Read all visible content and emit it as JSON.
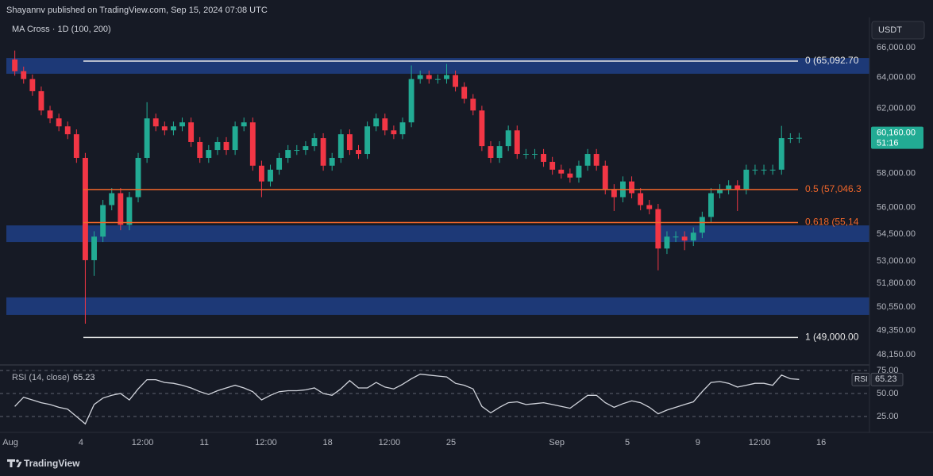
{
  "header": {
    "byline": "Shayannv published on TradingView.com, Sep 15, 2024 07:08 UTC"
  },
  "footer": {
    "brand": "TradingView"
  },
  "chart_data": [
    {
      "type": "candlestick",
      "title": "MA Cross · 1D (100, 200)",
      "currency": "USDT",
      "log_scale": true,
      "grid": false,
      "up_color": "#22ab94",
      "down_color": "#f23645",
      "x": [
        0.25,
        0.75,
        1.25,
        1.75,
        2.25,
        2.75,
        3.25,
        3.75,
        4.25,
        4.75,
        5.25,
        5.75,
        6.25,
        6.75,
        7.25,
        7.75,
        8.25,
        8.75,
        9.25,
        9.75,
        10.25,
        10.75,
        11.25,
        11.75,
        12.25,
        12.75,
        13.25,
        13.75,
        14.25,
        14.75,
        15.25,
        15.75,
        16.25,
        16.75,
        17.25,
        17.75,
        18.25,
        18.75,
        19.25,
        19.75,
        20.25,
        20.75,
        21.25,
        21.75,
        22.25,
        22.75,
        23.25,
        23.75,
        24.25,
        24.75,
        25.25,
        25.75,
        26.25,
        26.75,
        27.25,
        27.75,
        28.25,
        28.75,
        29.25,
        29.75,
        30.25,
        30.75,
        31.25,
        31.75,
        32.25,
        32.75,
        33.25,
        33.75,
        34.25,
        34.75,
        35.25,
        35.75,
        36.25,
        36.75,
        37.25,
        37.75,
        38.25,
        38.75,
        39.25,
        39.75,
        40.25,
        40.75,
        41.25,
        41.75,
        42.25,
        42.75,
        43.25,
        43.75,
        44.25,
        44.75
      ],
      "open": [
        65200,
        64420,
        63900,
        63110,
        61870,
        61370,
        60870,
        60380,
        58930,
        53050,
        54350,
        56140,
        56830,
        55010,
        56600,
        58930,
        61370,
        60870,
        60620,
        60870,
        61120,
        59900,
        58930,
        59410,
        59900,
        59410,
        60870,
        61120,
        58460,
        57520,
        58220,
        58930,
        59410,
        59410,
        59650,
        60140,
        58460,
        58930,
        60380,
        59410,
        59170,
        60870,
        61370,
        60620,
        60380,
        61120,
        63900,
        64160,
        63900,
        63900,
        64160,
        63390,
        62620,
        61870,
        59650,
        58930,
        59650,
        60620,
        59170,
        59170,
        59170,
        58690,
        58220,
        57990,
        57750,
        58460,
        59170,
        58460,
        57060,
        56600,
        57520,
        56830,
        56140,
        55910,
        53690,
        54350,
        54350,
        54130,
        54570,
        55460,
        56830,
        57060,
        57290,
        57060,
        58220,
        58220,
        58220,
        58220,
        60140,
        60140
      ],
      "high": [
        65800,
        64720,
        64200,
        63410,
        62170,
        61670,
        61170,
        60680,
        59230,
        54650,
        56440,
        57130,
        57130,
        56900,
        59230,
        62400,
        61670,
        61170,
        61170,
        61420,
        61420,
        60200,
        59710,
        60200,
        60200,
        61170,
        61420,
        61420,
        58760,
        58520,
        59230,
        59710,
        59710,
        59950,
        60440,
        60440,
        59230,
        60680,
        60680,
        59710,
        61170,
        61670,
        61670,
        60920,
        61420,
        64800,
        64460,
        64460,
        64200,
        64900,
        64460,
        63690,
        62920,
        62170,
        59950,
        59950,
        60920,
        60920,
        59470,
        59470,
        59470,
        58990,
        58520,
        58290,
        58760,
        59470,
        59470,
        58760,
        57360,
        57820,
        57820,
        57130,
        56440,
        56210,
        54650,
        54650,
        54650,
        54870,
        55760,
        57130,
        57360,
        57590,
        57590,
        58520,
        58520,
        58520,
        58520,
        60900,
        60440,
        60460
      ],
      "low": [
        64120,
        63600,
        62810,
        61570,
        61070,
        60570,
        60080,
        58630,
        49700,
        52200,
        54050,
        55840,
        54710,
        54710,
        56300,
        58630,
        60570,
        60320,
        60320,
        60570,
        59600,
        58630,
        58630,
        59110,
        59110,
        59110,
        60570,
        58160,
        56600,
        57220,
        57920,
        58630,
        59110,
        59110,
        59350,
        58160,
        58160,
        58630,
        59110,
        58870,
        58870,
        60570,
        60320,
        60080,
        60080,
        60820,
        63600,
        63600,
        63600,
        63600,
        63090,
        62320,
        61570,
        59350,
        58630,
        58630,
        59350,
        58870,
        58870,
        58870,
        58390,
        57920,
        57690,
        57450,
        57450,
        58160,
        58160,
        56760,
        55800,
        56300,
        56530,
        55840,
        55610,
        52500,
        53390,
        54050,
        53600,
        53830,
        54270,
        55160,
        56530,
        56760,
        55800,
        56760,
        57920,
        57920,
        57920,
        57920,
        59840,
        59840
      ],
      "close": [
        64420,
        63900,
        63110,
        61870,
        61370,
        60870,
        60380,
        58930,
        53050,
        54350,
        56140,
        56830,
        55010,
        56600,
        58930,
        61370,
        60870,
        60620,
        60870,
        61120,
        59900,
        58930,
        59410,
        59900,
        59410,
        60870,
        61120,
        58460,
        57520,
        58220,
        58930,
        59410,
        59410,
        59650,
        60140,
        58460,
        58930,
        60380,
        59410,
        59170,
        60870,
        61370,
        60620,
        60380,
        61120,
        63900,
        64160,
        63900,
        63900,
        64160,
        63390,
        62620,
        61870,
        59650,
        58930,
        59650,
        60620,
        59170,
        59170,
        59170,
        58690,
        58220,
        57990,
        57750,
        58460,
        59170,
        58460,
        57060,
        56600,
        57520,
        56830,
        56140,
        55910,
        53690,
        54350,
        54350,
        54130,
        54570,
        55460,
        56830,
        57060,
        57290,
        57060,
        58220,
        58220,
        58220,
        58220,
        60140,
        60140,
        60160
      ],
      "xlim": [
        -0.59,
        48.74
      ],
      "xticks": [
        {
          "value": 0,
          "label": "Aug"
        },
        4,
        {
          "value": 7.5,
          "label": "12:00"
        },
        11,
        {
          "value": 14.5,
          "label": "12:00"
        },
        18,
        {
          "value": 21.5,
          "label": "12:00"
        },
        25,
        {
          "value": 31,
          "label": "Sep"
        },
        {
          "value": 35,
          "label": "5"
        },
        {
          "value": 39,
          "label": "9"
        },
        {
          "value": 42.5,
          "label": "12:00"
        },
        {
          "value": 46,
          "label": "16"
        }
      ],
      "ylim": [
        47715,
        68076
      ],
      "yticks": [
        {
          "value": 66000,
          "label": "66,000.00"
        },
        {
          "value": 64000,
          "label": "64,000.00"
        },
        {
          "value": 62000,
          "label": "62,000.00"
        },
        {
          "value": 58000,
          "label": "58,000.00"
        },
        {
          "value": 56000,
          "label": "56,000.00"
        },
        {
          "value": 54500,
          "label": "54,500.00"
        },
        {
          "value": 53000,
          "label": "53,000.00"
        },
        {
          "value": 51800,
          "label": "51,800.00"
        },
        {
          "value": 50550,
          "label": "50,550.00"
        },
        {
          "value": 49350,
          "label": "49,350.00"
        },
        {
          "value": 48150,
          "label": "48,150.00"
        }
      ],
      "zone_color": "#1e3f86",
      "zones": [
        {
          "low": 64250,
          "high": 65300
        },
        {
          "low": 54050,
          "high": 54980
        },
        {
          "low": 50150,
          "high": 51060
        }
      ],
      "fib_levels": [
        {
          "value": 65092.7,
          "label": "0 (65,092.70",
          "color": "#e8e8e8"
        },
        {
          "value": 57046.3,
          "label": "0.5 (57,046.3",
          "color": "#f0662a"
        },
        {
          "value": 55140,
          "label": "0.618 (55,14",
          "color": "#f0662a"
        },
        {
          "value": 49000,
          "label": "1 (49,000.00",
          "color": "#e8e8e8"
        }
      ],
      "last_price": {
        "value": 60160,
        "label": "60,160.00"
      },
      "countdown": "51:16"
    },
    {
      "type": "line",
      "title": "RSI (14, close)",
      "color": "#d1d4dc",
      "current": 65.23,
      "tag": "RSI",
      "values": [
        36,
        46,
        43,
        40,
        38,
        35,
        33,
        25,
        17,
        38,
        45,
        48,
        50,
        43,
        55,
        65,
        65,
        62,
        61,
        59,
        56,
        52,
        49,
        53,
        56,
        59,
        56,
        52,
        43,
        48,
        52,
        53,
        53,
        54,
        56,
        50,
        48,
        55,
        64,
        56,
        56,
        62,
        57,
        55,
        60,
        66,
        71,
        70,
        69,
        68,
        61,
        59,
        55,
        36,
        29,
        35,
        40,
        41,
        38,
        39,
        40,
        38,
        36,
        34,
        41,
        48,
        48,
        40,
        35,
        39,
        42,
        40,
        35,
        28,
        32,
        35,
        38,
        41,
        52,
        62,
        63,
        61,
        57,
        59,
        61,
        61,
        59,
        70,
        66,
        65.23
      ],
      "ylim": [
        7.8,
        79.3
      ],
      "yticks": [
        {
          "value": 75,
          "label": "75.00"
        },
        {
          "value": 50,
          "label": "50.00"
        },
        {
          "value": 25,
          "label": "25.00"
        }
      ]
    }
  ]
}
